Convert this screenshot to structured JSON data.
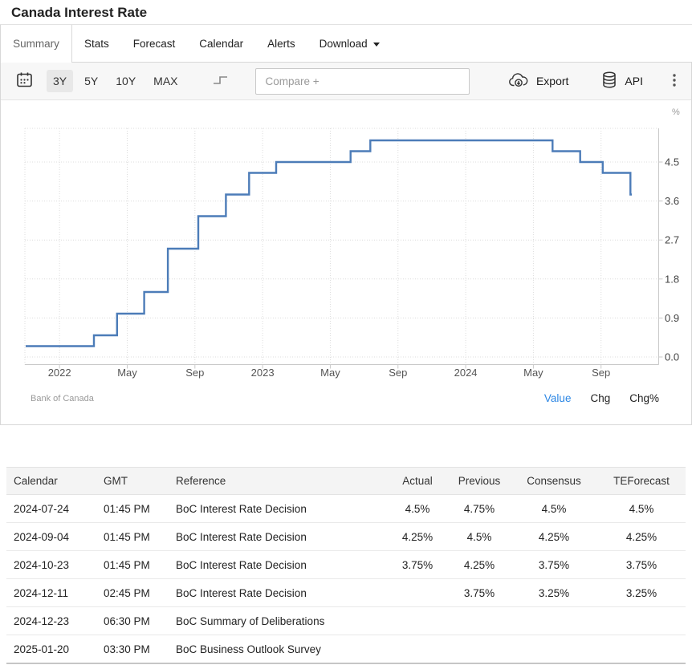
{
  "header": {
    "title": "Canada Interest Rate"
  },
  "tabs": {
    "items": [
      {
        "label": "Summary",
        "active": true
      },
      {
        "label": "Stats",
        "active": false
      },
      {
        "label": "Forecast",
        "active": false
      },
      {
        "label": "Calendar",
        "active": false
      },
      {
        "label": "Alerts",
        "active": false
      },
      {
        "label": "Download",
        "active": false,
        "has_caret": true
      }
    ]
  },
  "toolbar": {
    "ranges": [
      "3Y",
      "5Y",
      "10Y",
      "MAX"
    ],
    "active_range": "3Y",
    "compare_placeholder": "Compare +",
    "export_label": "Export",
    "api_label": "API"
  },
  "chart": {
    "source": "Bank of Canada",
    "modes": [
      {
        "label": "Value",
        "active": true
      },
      {
        "label": "Chg",
        "active": false
      },
      {
        "label": "Chg%",
        "active": false
      }
    ]
  },
  "chart_data": {
    "type": "line",
    "step": true,
    "title": "Canada Interest Rate",
    "unit_label": "%",
    "ylabel": "%",
    "ylim": [
      0,
      5.4
    ],
    "grid": true,
    "legend": "none",
    "line_color": "#4c7cb8",
    "x_start_date": "2021-11-01",
    "end_m": 35.82,
    "y_ticks": [
      {
        "label": "0.0",
        "v": 0
      },
      {
        "label": "0.9",
        "v": 0.9
      },
      {
        "label": "1.8",
        "v": 1.8
      },
      {
        "label": "2.7",
        "v": 2.7
      },
      {
        "label": "3.6",
        "v": 3.6
      },
      {
        "label": "4.5",
        "v": 4.5
      }
    ],
    "x_ticks": [
      {
        "label": "2022",
        "m": 2
      },
      {
        "label": "May",
        "m": 6
      },
      {
        "label": "Sep",
        "m": 10
      },
      {
        "label": "2023",
        "m": 14
      },
      {
        "label": "May",
        "m": 18
      },
      {
        "label": "Sep",
        "m": 22
      },
      {
        "label": "2024",
        "m": 26
      },
      {
        "label": "May",
        "m": 30
      },
      {
        "label": "Sep",
        "m": 34
      }
    ],
    "series": [
      {
        "name": "Canada Interest Rate",
        "points": [
          {
            "date": "2021-11-01",
            "value": 0.25
          },
          {
            "date": "2022-03-02",
            "value": 0.5
          },
          {
            "date": "2022-04-13",
            "value": 1.0
          },
          {
            "date": "2022-06-01",
            "value": 1.5
          },
          {
            "date": "2022-07-13",
            "value": 2.5
          },
          {
            "date": "2022-09-07",
            "value": 3.25
          },
          {
            "date": "2022-10-26",
            "value": 3.75
          },
          {
            "date": "2022-12-07",
            "value": 4.25
          },
          {
            "date": "2023-01-25",
            "value": 4.5
          },
          {
            "date": "2023-06-07",
            "value": 4.75
          },
          {
            "date": "2023-07-12",
            "value": 5.0
          },
          {
            "date": "2024-06-05",
            "value": 4.75
          },
          {
            "date": "2024-07-24",
            "value": 4.5
          },
          {
            "date": "2024-09-04",
            "value": 4.25
          },
          {
            "date": "2024-10-23",
            "value": 3.75
          }
        ]
      }
    ]
  },
  "table": {
    "headers": [
      "Calendar",
      "GMT",
      "Reference",
      "Actual",
      "Previous",
      "Consensus",
      "TEForecast"
    ],
    "rows": [
      [
        "2024-07-24",
        "01:45 PM",
        "BoC Interest Rate Decision",
        "4.5%",
        "4.75%",
        "4.5%",
        "4.5%"
      ],
      [
        "2024-09-04",
        "01:45 PM",
        "BoC Interest Rate Decision",
        "4.25%",
        "4.5%",
        "4.25%",
        "4.25%"
      ],
      [
        "2024-10-23",
        "01:45 PM",
        "BoC Interest Rate Decision",
        "3.75%",
        "4.25%",
        "3.75%",
        "3.75%"
      ],
      [
        "2024-12-11",
        "02:45 PM",
        "BoC Interest Rate Decision",
        "",
        "3.75%",
        "3.25%",
        "3.25%"
      ],
      [
        "2024-12-23",
        "06:30 PM",
        "BoC Summary of Deliberations",
        "",
        "",
        "",
        ""
      ],
      [
        "2025-01-20",
        "03:30 PM",
        "BoC Business Outlook Survey",
        "",
        "",
        "",
        ""
      ]
    ]
  }
}
